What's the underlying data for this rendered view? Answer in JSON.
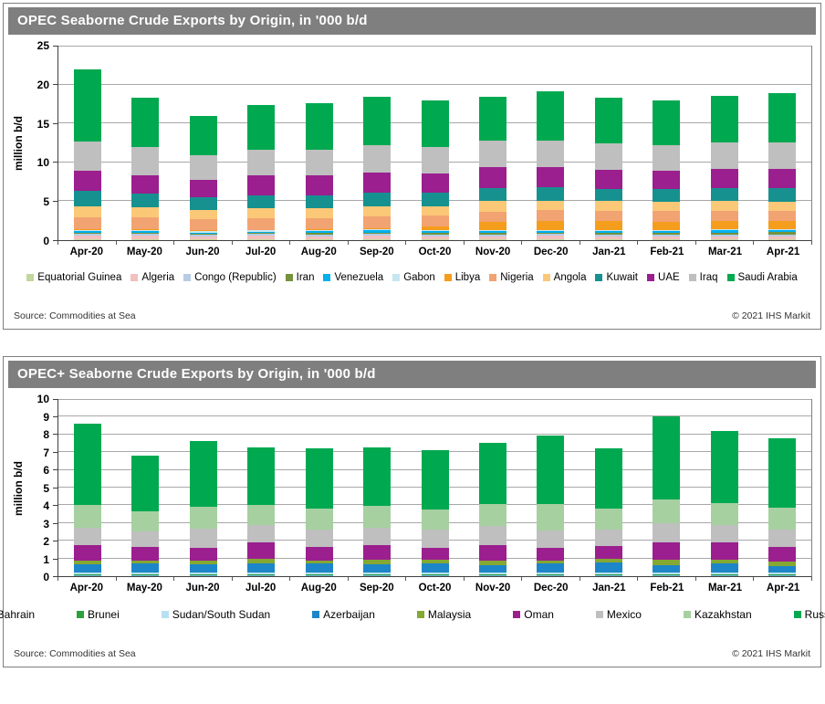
{
  "page": {
    "background": "#ffffff",
    "panel_border_color": "#7f7f7f",
    "title_bar_color": "#7f7f7f",
    "axis_color": "#404040",
    "grid_color": "#a8a8a8"
  },
  "panels": [
    {
      "title": "OPEC Seaborne Crude Exports by Origin, in '000 b/d",
      "ylabel": "million b/d",
      "source": "Source: Commodities at Sea",
      "copyright": "© 2021 IHS Markit",
      "chart_data": {
        "type": "bar",
        "stacked": true,
        "grid": true,
        "legend_position": "bottom",
        "ylim": [
          0,
          25
        ],
        "ytick_step": 5,
        "categories": [
          "Apr-20",
          "May-20",
          "Jun-20",
          "Jul-20",
          "Aug-20",
          "Sep-20",
          "Oct-20",
          "Nov-20",
          "Dec-20",
          "Jan-21",
          "Feb-21",
          "Mar-21",
          "Apr-21"
        ],
        "series": [
          {
            "name": "Equatorial Guinea",
            "color": "#c3d69b",
            "values": [
              0.1,
              0.1,
              0.1,
              0.1,
              0.1,
              0.1,
              0.1,
              0.1,
              0.1,
              0.1,
              0.1,
              0.1,
              0.1
            ]
          },
          {
            "name": "Algeria",
            "color": "#f2c0bd",
            "values": [
              0.5,
              0.45,
              0.4,
              0.45,
              0.4,
              0.45,
              0.35,
              0.4,
              0.45,
              0.4,
              0.4,
              0.4,
              0.4
            ]
          },
          {
            "name": "Congo (Republic)",
            "color": "#b8cce4",
            "values": [
              0.25,
              0.25,
              0.2,
              0.25,
              0.25,
              0.25,
              0.25,
              0.25,
              0.25,
              0.25,
              0.25,
              0.25,
              0.25
            ]
          },
          {
            "name": "Iran",
            "color": "#76923c",
            "values": [
              0.1,
              0.1,
              0.1,
              0.1,
              0.15,
              0.15,
              0.2,
              0.25,
              0.2,
              0.2,
              0.2,
              0.2,
              0.3
            ]
          },
          {
            "name": "Venezuela",
            "color": "#00b0f0",
            "values": [
              0.25,
              0.3,
              0.2,
              0.2,
              0.25,
              0.3,
              0.25,
              0.2,
              0.15,
              0.25,
              0.2,
              0.3,
              0.25
            ]
          },
          {
            "name": "Gabon",
            "color": "#c6e6f0",
            "values": [
              0.15,
              0.15,
              0.15,
              0.15,
              0.15,
              0.15,
              0.15,
              0.15,
              0.15,
              0.15,
              0.15,
              0.15,
              0.15
            ]
          },
          {
            "name": "Libya",
            "color": "#f59d1d",
            "values": [
              0.1,
              0.1,
              0.1,
              0.1,
              0.1,
              0.15,
              0.45,
              0.95,
              1.2,
              1.15,
              1.1,
              1.1,
              1.0
            ]
          },
          {
            "name": "Nigeria",
            "color": "#f2a372",
            "values": [
              1.55,
              1.5,
              1.45,
              1.5,
              1.45,
              1.5,
              1.45,
              1.4,
              1.35,
              1.3,
              1.35,
              1.3,
              1.3
            ]
          },
          {
            "name": "Angola",
            "color": "#fbc877",
            "values": [
              1.3,
              1.25,
              1.2,
              1.25,
              1.25,
              1.3,
              1.2,
              1.3,
              1.25,
              1.2,
              1.15,
              1.2,
              1.2
            ]
          },
          {
            "name": "Kuwait",
            "color": "#16918f",
            "values": [
              2.0,
              1.8,
              1.6,
              1.7,
              1.7,
              1.75,
              1.7,
              1.75,
              1.7,
              1.6,
              1.65,
              1.7,
              1.7
            ]
          },
          {
            "name": "UAE",
            "color": "#9b1f8e",
            "values": [
              2.6,
              2.4,
              2.2,
              2.5,
              2.55,
              2.6,
              2.5,
              2.7,
              2.6,
              2.5,
              2.4,
              2.5,
              2.55
            ]
          },
          {
            "name": "Iraq",
            "color": "#bfbfbf",
            "values": [
              3.8,
              3.6,
              3.2,
              3.3,
              3.3,
              3.5,
              3.4,
              3.3,
              3.4,
              3.3,
              3.3,
              3.4,
              3.4
            ]
          },
          {
            "name": "Saudi Arabia",
            "color": "#00a950",
            "values": [
              9.3,
              6.3,
              5.1,
              5.8,
              5.95,
              6.3,
              6.0,
              5.65,
              6.3,
              5.9,
              5.75,
              5.9,
              6.3
            ]
          }
        ]
      }
    },
    {
      "title": "OPEC+ Seaborne Crude Exports by Origin, in '000 b/d",
      "ylabel": "million b/d",
      "source": "Source: Commodities at Sea",
      "copyright": "© 2021 IHS Markit",
      "chart_data": {
        "type": "bar",
        "stacked": true,
        "grid": true,
        "legend_position": "bottom",
        "ylim": [
          0,
          10
        ],
        "ytick_step": 1,
        "categories": [
          "Apr-20",
          "May-20",
          "Jun-20",
          "Jul-20",
          "Aug-20",
          "Sep-20",
          "Oct-20",
          "Nov-20",
          "Dec-20",
          "Jan-21",
          "Feb-21",
          "Mar-21",
          "Apr-21"
        ],
        "series": [
          {
            "name": "Bahrain",
            "color": "#6cb5dd",
            "values": [
              0.05,
              0.05,
              0.05,
              0.05,
              0.05,
              0.05,
              0.05,
              0.05,
              0.05,
              0.05,
              0.05,
              0.05,
              0.05
            ]
          },
          {
            "name": "Brunei",
            "color": "#2da03c",
            "values": [
              0.05,
              0.05,
              0.05,
              0.05,
              0.05,
              0.05,
              0.05,
              0.05,
              0.05,
              0.05,
              0.05,
              0.05,
              0.05
            ]
          },
          {
            "name": "Sudan/South Sudan",
            "color": "#b8e0f2",
            "values": [
              0.1,
              0.1,
              0.1,
              0.1,
              0.1,
              0.1,
              0.1,
              0.1,
              0.1,
              0.1,
              0.1,
              0.1,
              0.1
            ]
          },
          {
            "name": "Azerbaijan",
            "color": "#1d86c8",
            "values": [
              0.45,
              0.5,
              0.45,
              0.5,
              0.5,
              0.45,
              0.5,
              0.4,
              0.5,
              0.55,
              0.4,
              0.5,
              0.35
            ]
          },
          {
            "name": "Malaysia",
            "color": "#84a832",
            "values": [
              0.25,
              0.2,
              0.25,
              0.3,
              0.2,
              0.3,
              0.25,
              0.3,
              0.2,
              0.25,
              0.35,
              0.25,
              0.3
            ]
          },
          {
            "name": "Oman",
            "color": "#9b1f8e",
            "values": [
              0.85,
              0.75,
              0.7,
              0.9,
              0.75,
              0.8,
              0.65,
              0.85,
              0.7,
              0.7,
              0.95,
              0.95,
              0.8
            ]
          },
          {
            "name": "Mexico",
            "color": "#bfbfbf",
            "values": [
              1.0,
              0.9,
              1.1,
              1.0,
              1.0,
              1.0,
              1.05,
              1.1,
              1.0,
              0.95,
              1.1,
              1.0,
              1.0
            ]
          },
          {
            "name": "Kazakhstan",
            "color": "#a6d0a0",
            "values": [
              1.25,
              1.1,
              1.2,
              1.1,
              1.15,
              1.2,
              1.1,
              1.25,
              1.45,
              1.15,
              1.35,
              1.25,
              1.2
            ]
          },
          {
            "name": "Russia",
            "color": "#00a950",
            "values": [
              4.6,
              3.15,
              3.75,
              3.25,
              3.4,
              3.3,
              3.35,
              3.45,
              3.9,
              3.4,
              4.65,
              4.05,
              3.95
            ]
          }
        ]
      }
    }
  ]
}
